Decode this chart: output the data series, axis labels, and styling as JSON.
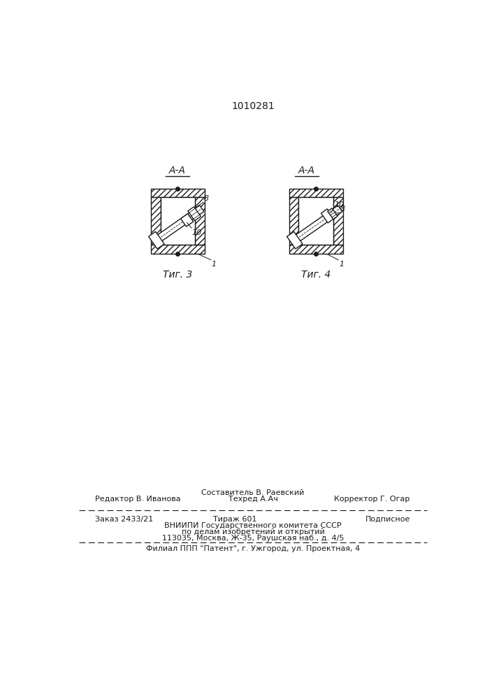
{
  "patent_number": "1010281",
  "background_color": "#ffffff",
  "line_color": "#1a1a1a",
  "fig3_caption": "Τиг. 3",
  "fig4_caption": "Τиг. 4",
  "footer_editor": "Редактор В. Иванова",
  "footer_compiler": "Составитель В. Раевский",
  "footer_techred": "Техред А.Ач",
  "footer_corrector": "Корректор Г. Огар",
  "footer_order": "Заказ 2433/21",
  "footer_tirazh": "Тираж 601",
  "footer_podpisnoe": "Подписное",
  "footer_vniipи": "ВНИИПИ Государственного комитета СССР",
  "footer_podelan": "по делам изобретений и открытий",
  "footer_addr": "113035, Москва, Ж-35, Раушская наб., д. 4/5",
  "footer_filial": "Филиал ППП \"Патент\", г. Ужгород, ул. Проектная, 4"
}
